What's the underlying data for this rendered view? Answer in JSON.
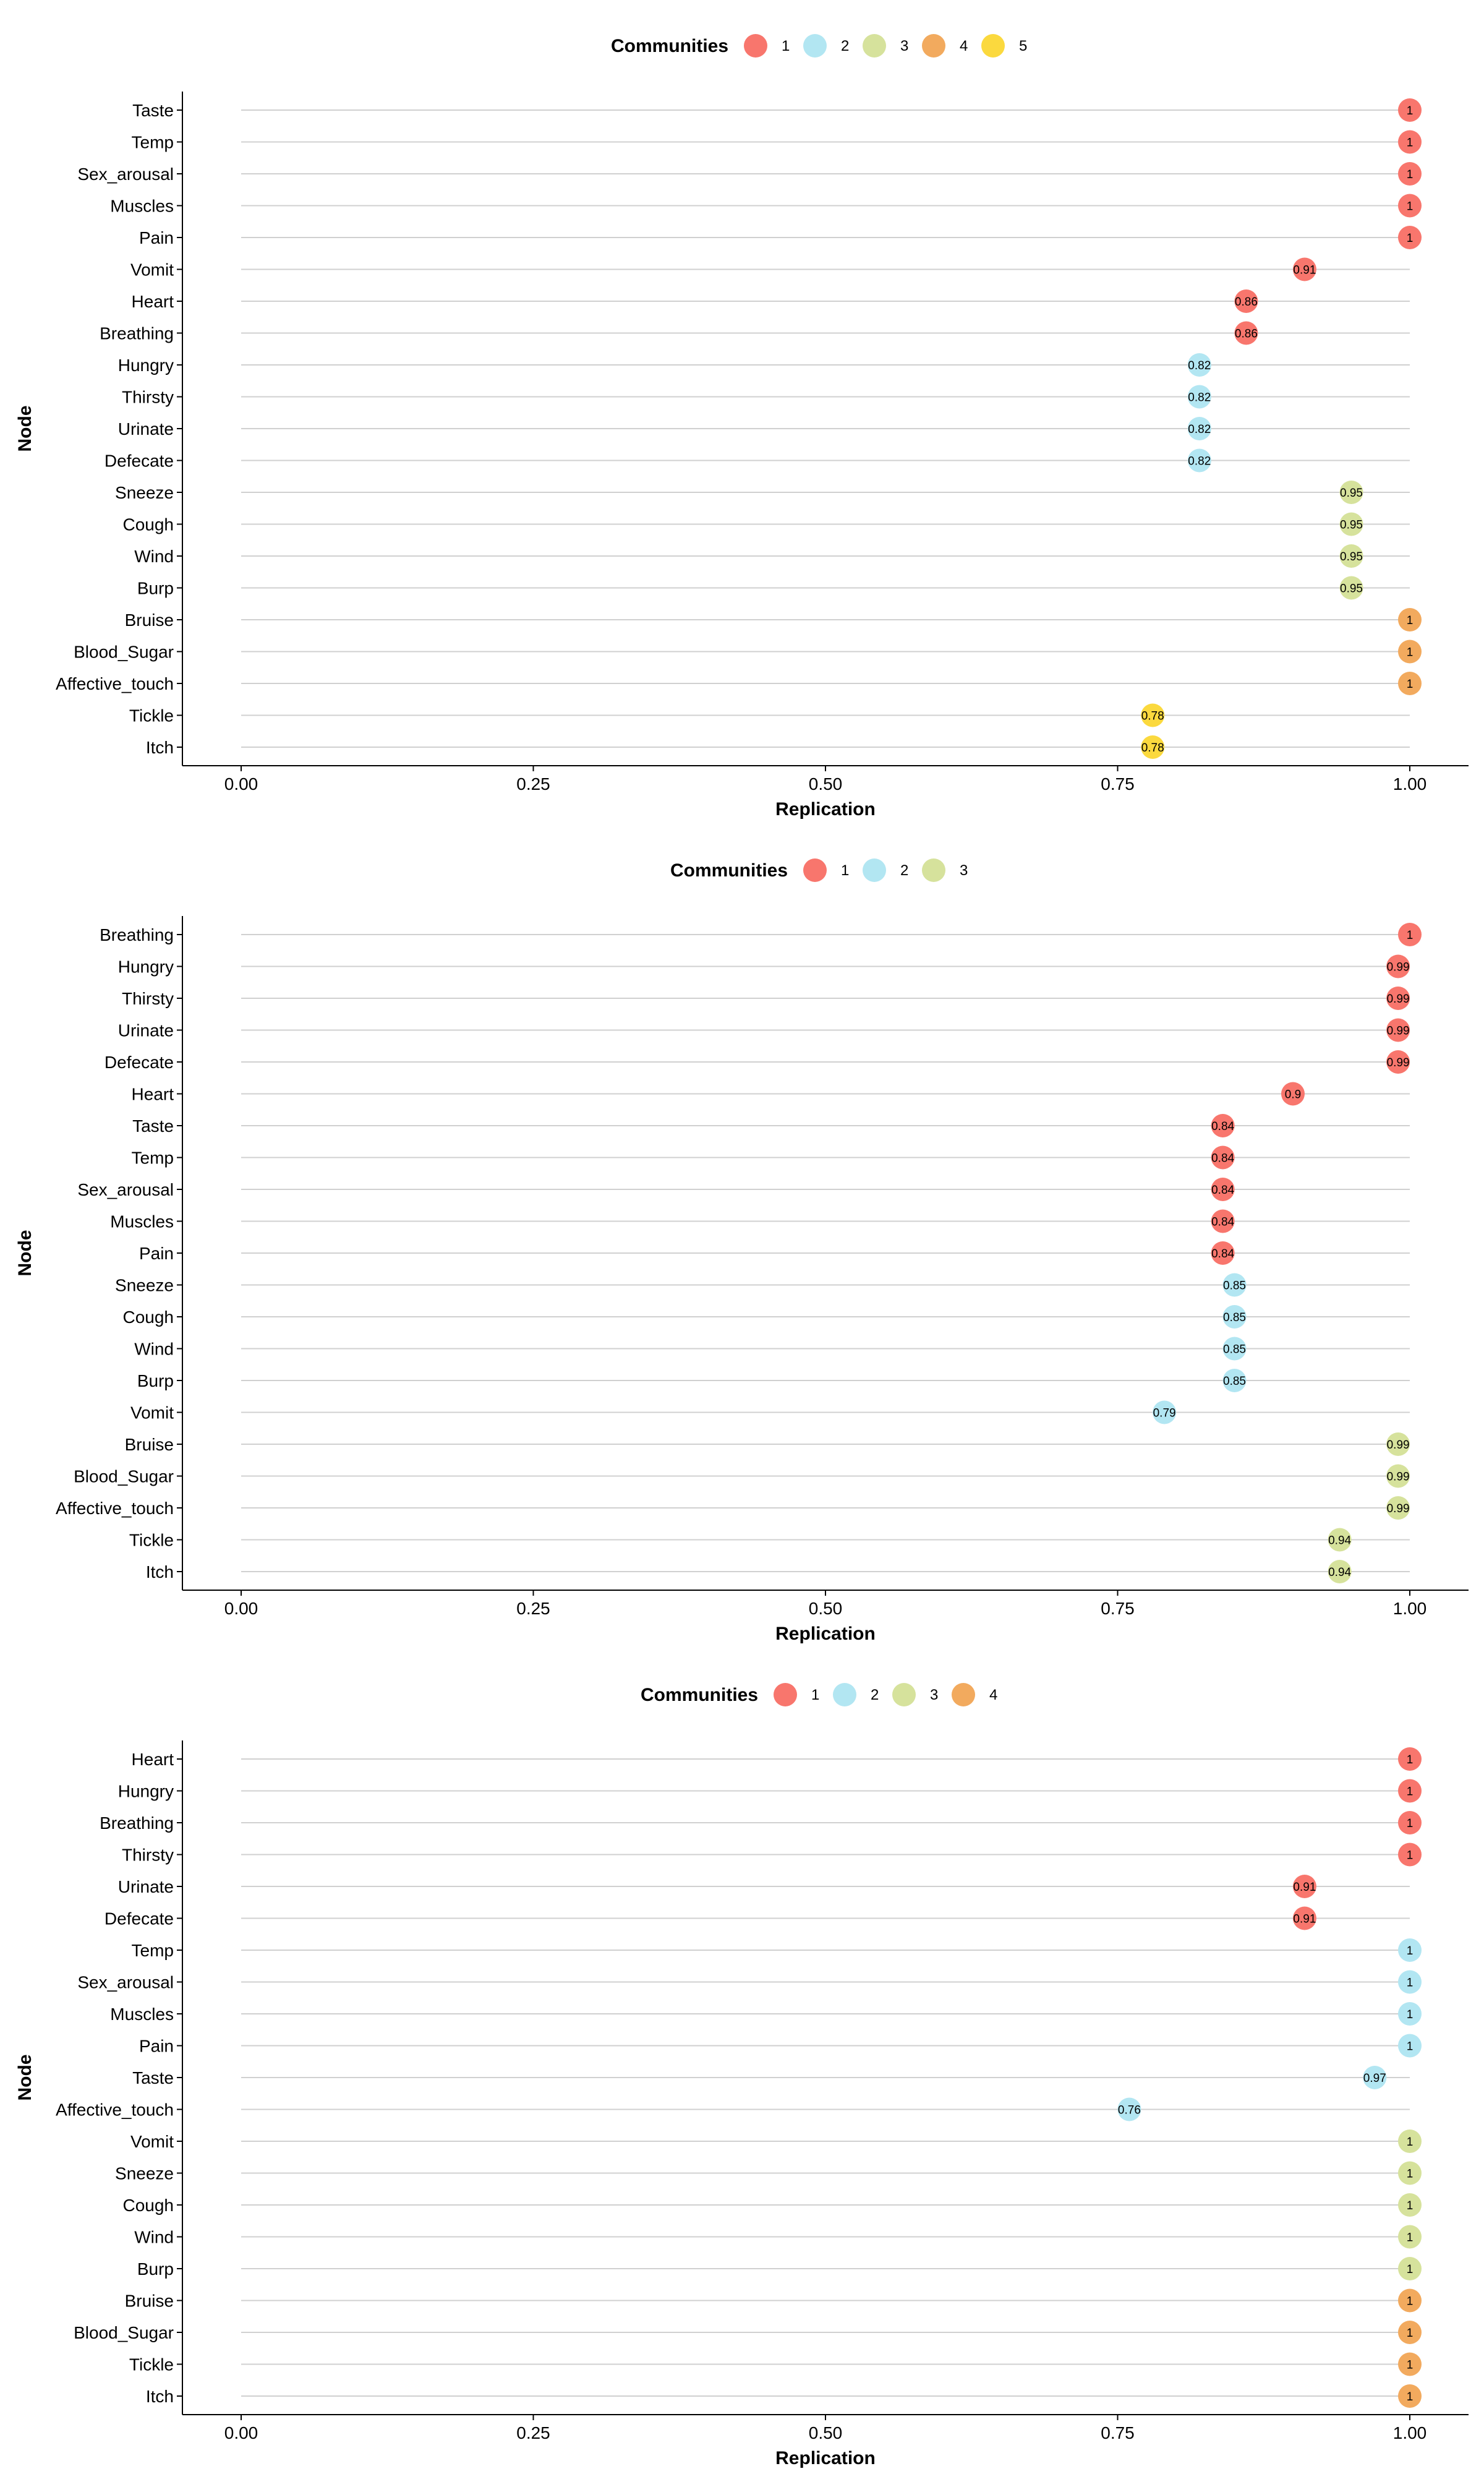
{
  "community_colors": {
    "1": "#F8766D",
    "2": "#B2E6F2",
    "3": "#D6E29C",
    "4": "#F2AA5E",
    "5": "#FBD93E"
  },
  "chart_data": [
    {
      "type": "scatter",
      "title": "",
      "xlabel": "Replication",
      "ylabel": "Node",
      "xlim": [
        0,
        1
      ],
      "xticks": [
        "0.00",
        "0.25",
        "0.50",
        "0.75",
        "1.00"
      ],
      "grid": "horizontal",
      "legend": {
        "title": "Communities",
        "placement": "top",
        "entries": [
          "1",
          "2",
          "3",
          "4",
          "5"
        ]
      },
      "points": [
        {
          "node": "Taste",
          "value": 1,
          "label": "1",
          "community": "1"
        },
        {
          "node": "Temp",
          "value": 1,
          "label": "1",
          "community": "1"
        },
        {
          "node": "Sex_arousal",
          "value": 1,
          "label": "1",
          "community": "1"
        },
        {
          "node": "Muscles",
          "value": 1,
          "label": "1",
          "community": "1"
        },
        {
          "node": "Pain",
          "value": 1,
          "label": "1",
          "community": "1"
        },
        {
          "node": "Vomit",
          "value": 0.91,
          "label": "0.91",
          "community": "1"
        },
        {
          "node": "Heart",
          "value": 0.86,
          "label": "0.86",
          "community": "1"
        },
        {
          "node": "Breathing",
          "value": 0.86,
          "label": "0.86",
          "community": "1"
        },
        {
          "node": "Hungry",
          "value": 0.82,
          "label": "0.82",
          "community": "2"
        },
        {
          "node": "Thirsty",
          "value": 0.82,
          "label": "0.82",
          "community": "2"
        },
        {
          "node": "Urinate",
          "value": 0.82,
          "label": "0.82",
          "community": "2"
        },
        {
          "node": "Defecate",
          "value": 0.82,
          "label": "0.82",
          "community": "2"
        },
        {
          "node": "Sneeze",
          "value": 0.95,
          "label": "0.95",
          "community": "3"
        },
        {
          "node": "Cough",
          "value": 0.95,
          "label": "0.95",
          "community": "3"
        },
        {
          "node": "Wind",
          "value": 0.95,
          "label": "0.95",
          "community": "3"
        },
        {
          "node": "Burp",
          "value": 0.95,
          "label": "0.95",
          "community": "3"
        },
        {
          "node": "Bruise",
          "value": 1,
          "label": "1",
          "community": "4"
        },
        {
          "node": "Blood_Sugar",
          "value": 1,
          "label": "1",
          "community": "4"
        },
        {
          "node": "Affective_touch",
          "value": 1,
          "label": "1",
          "community": "4"
        },
        {
          "node": "Tickle",
          "value": 0.78,
          "label": "0.78",
          "community": "5"
        },
        {
          "node": "Itch",
          "value": 0.78,
          "label": "0.78",
          "community": "5"
        }
      ]
    },
    {
      "type": "scatter",
      "title": "",
      "xlabel": "Replication",
      "ylabel": "Node",
      "xlim": [
        0,
        1
      ],
      "xticks": [
        "0.00",
        "0.25",
        "0.50",
        "0.75",
        "1.00"
      ],
      "grid": "horizontal",
      "legend": {
        "title": "Communities",
        "placement": "top",
        "entries": [
          "1",
          "2",
          "3"
        ]
      },
      "points": [
        {
          "node": "Breathing",
          "value": 1,
          "label": "1",
          "community": "1"
        },
        {
          "node": "Hungry",
          "value": 0.99,
          "label": "0.99",
          "community": "1"
        },
        {
          "node": "Thirsty",
          "value": 0.99,
          "label": "0.99",
          "community": "1"
        },
        {
          "node": "Urinate",
          "value": 0.99,
          "label": "0.99",
          "community": "1"
        },
        {
          "node": "Defecate",
          "value": 0.99,
          "label": "0.99",
          "community": "1"
        },
        {
          "node": "Heart",
          "value": 0.9,
          "label": "0.9",
          "community": "1"
        },
        {
          "node": "Taste",
          "value": 0.84,
          "label": "0.84",
          "community": "1"
        },
        {
          "node": "Temp",
          "value": 0.84,
          "label": "0.84",
          "community": "1"
        },
        {
          "node": "Sex_arousal",
          "value": 0.84,
          "label": "0.84",
          "community": "1"
        },
        {
          "node": "Muscles",
          "value": 0.84,
          "label": "0.84",
          "community": "1"
        },
        {
          "node": "Pain",
          "value": 0.84,
          "label": "0.84",
          "community": "1"
        },
        {
          "node": "Sneeze",
          "value": 0.85,
          "label": "0.85",
          "community": "2"
        },
        {
          "node": "Cough",
          "value": 0.85,
          "label": "0.85",
          "community": "2"
        },
        {
          "node": "Wind",
          "value": 0.85,
          "label": "0.85",
          "community": "2"
        },
        {
          "node": "Burp",
          "value": 0.85,
          "label": "0.85",
          "community": "2"
        },
        {
          "node": "Vomit",
          "value": 0.79,
          "label": "0.79",
          "community": "2"
        },
        {
          "node": "Bruise",
          "value": 0.99,
          "label": "0.99",
          "community": "3"
        },
        {
          "node": "Blood_Sugar",
          "value": 0.99,
          "label": "0.99",
          "community": "3"
        },
        {
          "node": "Affective_touch",
          "value": 0.99,
          "label": "0.99",
          "community": "3"
        },
        {
          "node": "Tickle",
          "value": 0.94,
          "label": "0.94",
          "community": "3"
        },
        {
          "node": "Itch",
          "value": 0.94,
          "label": "0.94",
          "community": "3"
        }
      ]
    },
    {
      "type": "scatter",
      "title": "",
      "xlabel": "Replication",
      "ylabel": "Node",
      "xlim": [
        0,
        1
      ],
      "xticks": [
        "0.00",
        "0.25",
        "0.50",
        "0.75",
        "1.00"
      ],
      "grid": "horizontal",
      "legend": {
        "title": "Communities",
        "placement": "top",
        "entries": [
          "1",
          "2",
          "3",
          "4"
        ]
      },
      "points": [
        {
          "node": "Heart",
          "value": 1,
          "label": "1",
          "community": "1"
        },
        {
          "node": "Hungry",
          "value": 1,
          "label": "1",
          "community": "1"
        },
        {
          "node": "Breathing",
          "value": 1,
          "label": "1",
          "community": "1"
        },
        {
          "node": "Thirsty",
          "value": 1,
          "label": "1",
          "community": "1"
        },
        {
          "node": "Urinate",
          "value": 0.91,
          "label": "0.91",
          "community": "1"
        },
        {
          "node": "Defecate",
          "value": 0.91,
          "label": "0.91",
          "community": "1"
        },
        {
          "node": "Temp",
          "value": 1,
          "label": "1",
          "community": "2"
        },
        {
          "node": "Sex_arousal",
          "value": 1,
          "label": "1",
          "community": "2"
        },
        {
          "node": "Muscles",
          "value": 1,
          "label": "1",
          "community": "2"
        },
        {
          "node": "Pain",
          "value": 1,
          "label": "1",
          "community": "2"
        },
        {
          "node": "Taste",
          "value": 0.97,
          "label": "0.97",
          "community": "2"
        },
        {
          "node": "Affective_touch",
          "value": 0.76,
          "label": "0.76",
          "community": "2"
        },
        {
          "node": "Vomit",
          "value": 1,
          "label": "1",
          "community": "3"
        },
        {
          "node": "Sneeze",
          "value": 1,
          "label": "1",
          "community": "3"
        },
        {
          "node": "Cough",
          "value": 1,
          "label": "1",
          "community": "3"
        },
        {
          "node": "Wind",
          "value": 1,
          "label": "1",
          "community": "3"
        },
        {
          "node": "Burp",
          "value": 1,
          "label": "1",
          "community": "3"
        },
        {
          "node": "Bruise",
          "value": 1,
          "label": "1",
          "community": "4"
        },
        {
          "node": "Blood_Sugar",
          "value": 1,
          "label": "1",
          "community": "4"
        },
        {
          "node": "Tickle",
          "value": 1,
          "label": "1",
          "community": "4"
        },
        {
          "node": "Itch",
          "value": 1,
          "label": "1",
          "community": "4"
        }
      ]
    }
  ]
}
